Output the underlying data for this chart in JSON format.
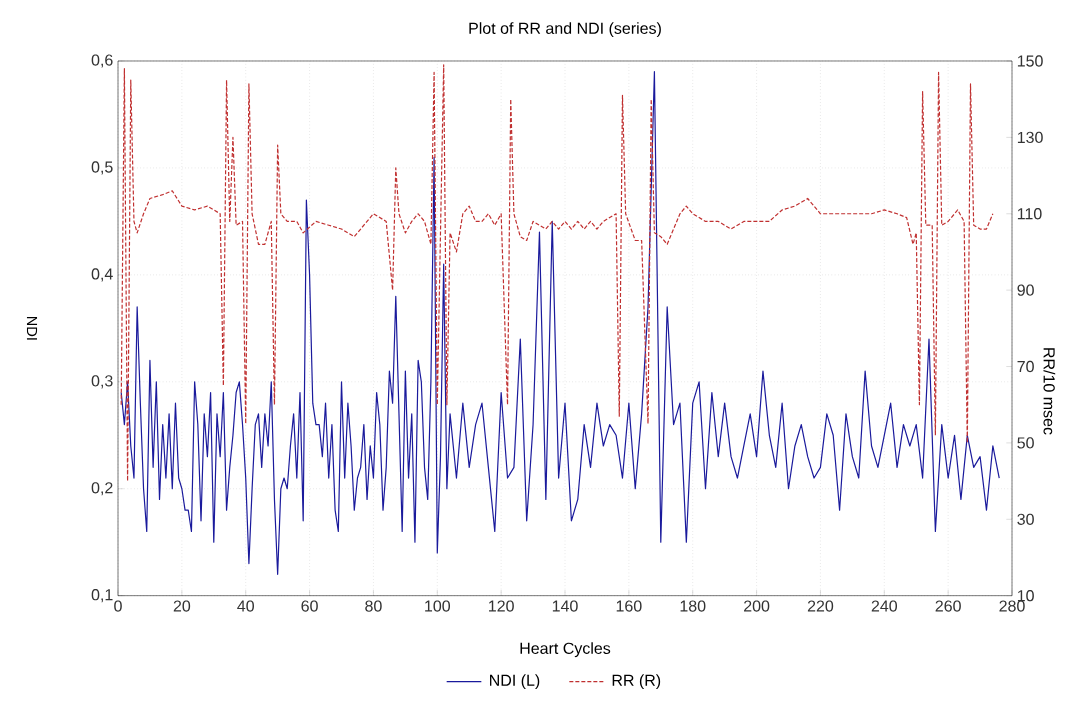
{
  "chart_data": {
    "type": "line",
    "title": "Plot of RR and NDI (series)",
    "xlabel": "Heart Cycles",
    "ylabel": "NDI",
    "y2label": "RR/10 msec",
    "xlim": [
      0,
      280
    ],
    "xticks": [
      0,
      20,
      40,
      60,
      80,
      100,
      120,
      140,
      160,
      180,
      200,
      220,
      240,
      260,
      280
    ],
    "ylim": [
      0.1,
      0.6
    ],
    "yticks": [
      {
        "value": 0.1,
        "label": "0,1"
      },
      {
        "value": 0.2,
        "label": "0,2"
      },
      {
        "value": 0.3,
        "label": "0,3"
      },
      {
        "value": 0.4,
        "label": "0,4"
      },
      {
        "value": 0.5,
        "label": "0,5"
      },
      {
        "value": 0.6,
        "label": "0,6"
      }
    ],
    "y2lim": [
      10,
      150
    ],
    "y2ticks": [
      10,
      30,
      50,
      70,
      90,
      110,
      130,
      150
    ],
    "grid": true,
    "legend": "bottom",
    "marker": "none",
    "series": [
      {
        "name": "NDI (L)",
        "color": "#1a1a9c",
        "line_style": "solid",
        "x": [
          1,
          2,
          3,
          4,
          5,
          6,
          7,
          8,
          9,
          10,
          11,
          12,
          13,
          14,
          15,
          16,
          17,
          18,
          19,
          20,
          21,
          22,
          23,
          24,
          25,
          26,
          27,
          28,
          29,
          30,
          31,
          32,
          33,
          34,
          35,
          36,
          37,
          38,
          39,
          40,
          41,
          42,
          43,
          44,
          45,
          46,
          47,
          48,
          49,
          50,
          51,
          52,
          53,
          54,
          55,
          56,
          57,
          58,
          59,
          60,
          61,
          62,
          63,
          64,
          65,
          66,
          67,
          68,
          69,
          70,
          71,
          72,
          73,
          74,
          75,
          76,
          77,
          78,
          79,
          80,
          81,
          82,
          83,
          84,
          85,
          86,
          87,
          88,
          89,
          90,
          91,
          92,
          93,
          94,
          95,
          96,
          97,
          98,
          99,
          100,
          101,
          102,
          103,
          104,
          106,
          108,
          110,
          112,
          114,
          116,
          118,
          120,
          122,
          124,
          126,
          128,
          130,
          132,
          134,
          136,
          138,
          140,
          142,
          144,
          146,
          148,
          150,
          152,
          154,
          156,
          158,
          160,
          162,
          164,
          166,
          168,
          170,
          172,
          174,
          176,
          178,
          180,
          182,
          184,
          186,
          188,
          190,
          192,
          194,
          196,
          198,
          200,
          202,
          204,
          206,
          208,
          210,
          212,
          214,
          216,
          218,
          220,
          222,
          224,
          226,
          228,
          230,
          232,
          234,
          236,
          238,
          240,
          242,
          244,
          246,
          248,
          250,
          252,
          254,
          256,
          258,
          260,
          262,
          264,
          266,
          268,
          270,
          272,
          274,
          276
        ],
        "values": [
          0.29,
          0.26,
          0.3,
          0.24,
          0.21,
          0.37,
          0.28,
          0.2,
          0.16,
          0.32,
          0.22,
          0.3,
          0.19,
          0.26,
          0.21,
          0.27,
          0.2,
          0.28,
          0.21,
          0.2,
          0.18,
          0.18,
          0.16,
          0.3,
          0.26,
          0.17,
          0.27,
          0.23,
          0.29,
          0.15,
          0.27,
          0.23,
          0.29,
          0.18,
          0.22,
          0.25,
          0.29,
          0.3,
          0.26,
          0.21,
          0.13,
          0.2,
          0.26,
          0.27,
          0.22,
          0.27,
          0.24,
          0.3,
          0.19,
          0.12,
          0.2,
          0.21,
          0.2,
          0.24,
          0.27,
          0.21,
          0.29,
          0.17,
          0.47,
          0.4,
          0.28,
          0.26,
          0.26,
          0.23,
          0.28,
          0.21,
          0.26,
          0.18,
          0.16,
          0.3,
          0.21,
          0.28,
          0.24,
          0.18,
          0.21,
          0.22,
          0.26,
          0.19,
          0.24,
          0.21,
          0.29,
          0.26,
          0.18,
          0.22,
          0.31,
          0.28,
          0.38,
          0.27,
          0.16,
          0.31,
          0.21,
          0.27,
          0.15,
          0.32,
          0.3,
          0.22,
          0.19,
          0.3,
          0.51,
          0.14,
          0.23,
          0.41,
          0.2,
          0.27,
          0.21,
          0.28,
          0.22,
          0.26,
          0.28,
          0.22,
          0.16,
          0.29,
          0.21,
          0.22,
          0.34,
          0.17,
          0.26,
          0.44,
          0.19,
          0.45,
          0.21,
          0.28,
          0.17,
          0.19,
          0.26,
          0.22,
          0.28,
          0.24,
          0.26,
          0.25,
          0.21,
          0.28,
          0.2,
          0.27,
          0.37,
          0.59,
          0.15,
          0.37,
          0.26,
          0.28,
          0.15,
          0.28,
          0.3,
          0.2,
          0.29,
          0.23,
          0.28,
          0.23,
          0.21,
          0.24,
          0.27,
          0.23,
          0.31,
          0.25,
          0.22,
          0.28,
          0.2,
          0.24,
          0.26,
          0.23,
          0.21,
          0.22,
          0.27,
          0.25,
          0.18,
          0.27,
          0.23,
          0.21,
          0.31,
          0.24,
          0.22,
          0.25,
          0.28,
          0.22,
          0.26,
          0.24,
          0.26,
          0.21,
          0.34,
          0.16,
          0.26,
          0.21,
          0.25,
          0.19,
          0.25,
          0.22,
          0.23,
          0.18,
          0.24,
          0.21
        ]
      },
      {
        "name": "RR (R)",
        "color": "#c03030",
        "line_style": "dashed",
        "axis": "y2",
        "x": [
          1,
          2,
          3,
          4,
          5,
          6,
          8,
          10,
          14,
          17,
          20,
          24,
          28,
          32,
          33,
          34,
          35,
          36,
          37,
          39,
          40,
          41,
          42,
          44,
          46,
          48,
          49,
          50,
          51,
          53,
          56,
          58,
          62,
          66,
          70,
          74,
          78,
          80,
          84,
          86,
          87,
          88,
          90,
          92,
          94,
          96,
          98,
          99,
          100,
          101,
          102,
          103,
          104,
          106,
          108,
          110,
          112,
          114,
          116,
          118,
          120,
          122,
          123,
          124,
          126,
          128,
          130,
          132,
          134,
          136,
          138,
          140,
          142,
          144,
          146,
          148,
          150,
          152,
          156,
          157,
          158,
          159,
          162,
          164,
          166,
          167,
          168,
          170,
          172,
          174,
          176,
          178,
          180,
          184,
          188,
          190,
          192,
          196,
          200,
          204,
          208,
          212,
          216,
          218,
          220,
          224,
          228,
          232,
          236,
          240,
          244,
          247,
          249,
          250,
          251,
          252,
          253,
          255,
          256,
          257,
          258,
          260,
          263,
          265,
          266,
          267,
          268,
          270,
          272,
          274
        ],
        "values": [
          60,
          148,
          40,
          145,
          108,
          105,
          110,
          114,
          115,
          116,
          112,
          111,
          112,
          110,
          65,
          145,
          108,
          130,
          107,
          108,
          55,
          144,
          110,
          102,
          102,
          108,
          60,
          128,
          110,
          108,
          108,
          105,
          108,
          107,
          106,
          104,
          108,
          110,
          108,
          90,
          122,
          110,
          105,
          108,
          110,
          108,
          102,
          147,
          60,
          105,
          149,
          60,
          105,
          100,
          110,
          112,
          108,
          108,
          110,
          107,
          110,
          60,
          140,
          110,
          104,
          103,
          108,
          107,
          106,
          108,
          106,
          108,
          106,
          108,
          106,
          108,
          106,
          108,
          110,
          57,
          141,
          110,
          103,
          103,
          55,
          140,
          105,
          104,
          102,
          106,
          110,
          112,
          110,
          108,
          108,
          107,
          106,
          108,
          108,
          108,
          111,
          112,
          114,
          112,
          110,
          110,
          110,
          110,
          110,
          111,
          110,
          109,
          102,
          105,
          60,
          142,
          107,
          107,
          52,
          147,
          107,
          108,
          111,
          108,
          50,
          144,
          107,
          106,
          106,
          110
        ]
      }
    ]
  }
}
